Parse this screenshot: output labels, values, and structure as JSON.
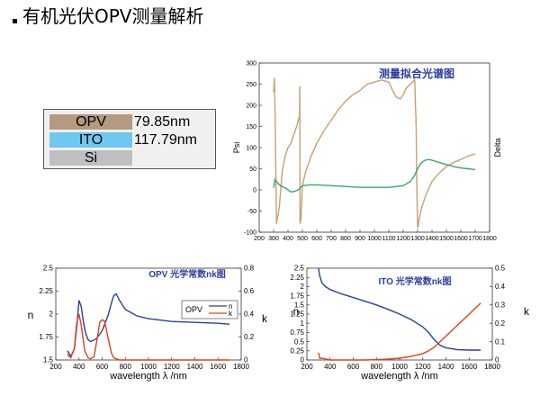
{
  "page": {
    "title": "有机光伏OPV测量解析"
  },
  "stack": {
    "layers": [
      {
        "name": "OPV",
        "thickness": "79.85nm",
        "color": "#b49a7e"
      },
      {
        "name": "ITO",
        "thickness": "117.79nm",
        "color": "#6fc8f0"
      },
      {
        "name": "Si",
        "thickness": "",
        "color": "#bfbfbf"
      }
    ]
  },
  "colors": {
    "psi": "#c8a06e",
    "delta": "#3aa66a",
    "n": "#2a3f9a",
    "k": "#e0401a",
    "title_blue": "#2b3d9e"
  },
  "chart_data": [
    {
      "type": "line",
      "title": "测量拟合光谱图",
      "xlabel": "",
      "ylabel": "Psi",
      "y2label": "Delta",
      "xlim": [
        200,
        1800
      ],
      "ylim": [
        -100,
        300
      ],
      "xticks": [
        200,
        300,
        400,
        500,
        600,
        700,
        800,
        900,
        1000,
        1100,
        1200,
        1300,
        1400,
        1500,
        1600,
        1700,
        1800
      ],
      "yticks": [
        -100,
        -50,
        0,
        50,
        100,
        150,
        200,
        250,
        300
      ],
      "series": [
        {
          "id": "psi",
          "x": [
            300,
            305,
            310,
            315,
            320,
            340,
            360,
            380,
            400,
            420,
            440,
            460,
            480,
            482,
            484,
            490,
            500,
            520,
            540,
            560,
            600,
            650,
            700,
            750,
            800,
            850,
            900,
            950,
            1000,
            1050,
            1100,
            1120,
            1150,
            1180,
            1200,
            1220,
            1250,
            1280,
            1290,
            1295,
            1300,
            1305,
            1310,
            1330,
            1360,
            1400,
            1450,
            1500,
            1550,
            1600,
            1650,
            1700
          ],
          "y": [
            230,
            265,
            200,
            60,
            -80,
            -40,
            45,
            80,
            100,
            110,
            130,
            150,
            175,
            245,
            -80,
            -70,
            10,
            40,
            60,
            80,
            110,
            140,
            165,
            190,
            210,
            225,
            235,
            250,
            255,
            260,
            255,
            240,
            220,
            215,
            225,
            240,
            250,
            260,
            150,
            0,
            -88,
            -85,
            -70,
            -40,
            -10,
            20,
            40,
            55,
            65,
            72,
            80,
            85
          ]
        },
        {
          "id": "delta",
          "x": [
            300,
            310,
            320,
            340,
            360,
            380,
            400,
            420,
            450,
            480,
            500,
            550,
            600,
            700,
            800,
            900,
            1000,
            1100,
            1200,
            1250,
            1280,
            1300,
            1320,
            1350,
            1380,
            1400,
            1450,
            1500,
            1550,
            1600,
            1650,
            1700
          ],
          "y": [
            5,
            25,
            20,
            12,
            8,
            5,
            0,
            -5,
            -3,
            2,
            10,
            12,
            12,
            10,
            8,
            6,
            6,
            6,
            10,
            20,
            35,
            50,
            62,
            70,
            72,
            70,
            65,
            60,
            55,
            52,
            50,
            48
          ]
        }
      ]
    },
    {
      "type": "line",
      "title": "OPV 光学常数nk图",
      "xlabel": "wavelength λ /nm",
      "ylabel": "n",
      "y2label": "k",
      "xlim": [
        200,
        1800
      ],
      "ylim": [
        1.5,
        2.5
      ],
      "y2lim": [
        0,
        0.8
      ],
      "xticks": [
        200,
        400,
        600,
        800,
        1000,
        1200,
        1400,
        1600,
        1800
      ],
      "yticks": [
        1.5,
        1.75,
        2,
        2.25,
        2.5
      ],
      "y2ticks": [
        0,
        0.2,
        0.4,
        0.6,
        0.8
      ],
      "legend": "right-middle",
      "series": [
        {
          "name": "n",
          "axis": "left",
          "x": [
            300,
            330,
            360,
            380,
            400,
            420,
            440,
            460,
            480,
            500,
            550,
            600,
            650,
            680,
            700,
            720,
            750,
            800,
            900,
            1000,
            1200,
            1400,
            1600,
            1700
          ],
          "y": [
            1.6,
            1.54,
            1.62,
            1.85,
            2.15,
            2.08,
            1.9,
            1.78,
            1.72,
            1.7,
            1.73,
            1.82,
            1.98,
            2.12,
            2.2,
            2.22,
            2.15,
            2.05,
            1.98,
            1.95,
            1.92,
            1.91,
            1.9,
            1.89
          ]
        },
        {
          "name": "k",
          "axis": "right",
          "x": [
            300,
            330,
            360,
            380,
            400,
            420,
            450,
            480,
            500,
            530,
            560,
            580,
            600,
            620,
            650,
            680,
            700,
            750,
            800,
            900,
            1000,
            1200,
            1400,
            1600,
            1700
          ],
          "y": [
            0.05,
            0.02,
            0.1,
            0.32,
            0.4,
            0.3,
            0.08,
            0.02,
            0.01,
            0.03,
            0.2,
            0.33,
            0.35,
            0.34,
            0.2,
            0.06,
            0.02,
            0,
            0,
            0,
            0,
            0,
            0,
            0,
            0
          ]
        }
      ]
    },
    {
      "type": "line",
      "title": "ITO 光学常数nk图",
      "xlabel": "wavelength λ /nm",
      "ylabel": "n",
      "y2label": "k",
      "xlim": [
        200,
        1800
      ],
      "ylim": [
        0,
        2.5
      ],
      "y2lim": [
        0,
        0.5
      ],
      "xticks": [
        200,
        400,
        600,
        800,
        1000,
        1200,
        1400,
        1600,
        1800
      ],
      "yticks": [
        0,
        0.25,
        0.5,
        0.75,
        1,
        1.25,
        1.5,
        1.75,
        2,
        2.25,
        2.5
      ],
      "y2ticks": [
        0,
        0.1,
        0.2,
        0.3,
        0.4,
        0.5
      ],
      "series": [
        {
          "name": "n",
          "axis": "left",
          "x": [
            300,
            310,
            330,
            360,
            400,
            500,
            600,
            700,
            800,
            900,
            1000,
            1100,
            1200,
            1250,
            1300,
            1350,
            1400,
            1500,
            1600,
            1700
          ],
          "y": [
            2.5,
            2.3,
            2.1,
            2.0,
            1.92,
            1.8,
            1.7,
            1.6,
            1.5,
            1.38,
            1.25,
            1.1,
            0.9,
            0.75,
            0.55,
            0.4,
            0.33,
            0.28,
            0.27,
            0.27
          ]
        },
        {
          "name": "k",
          "axis": "right",
          "x": [
            300,
            310,
            330,
            400,
            500,
            600,
            700,
            800,
            900,
            1000,
            1100,
            1200,
            1250,
            1300,
            1350,
            1400,
            1500,
            1600,
            1700
          ],
          "y": [
            0.04,
            0.01,
            0.01,
            0,
            0,
            0,
            0,
            0.002,
            0.005,
            0.01,
            0.02,
            0.035,
            0.05,
            0.07,
            0.1,
            0.13,
            0.19,
            0.25,
            0.31
          ]
        }
      ]
    }
  ]
}
